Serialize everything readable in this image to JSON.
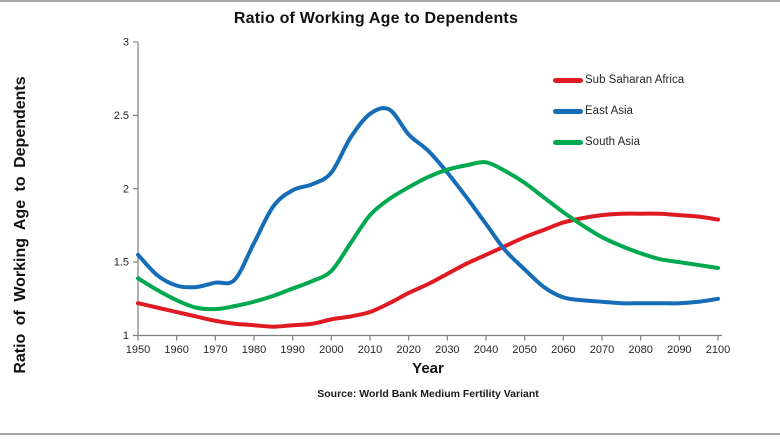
{
  "frame": {
    "rule_color": "#a8a8a8",
    "background": "#ffffff"
  },
  "chart_data": {
    "type": "line",
    "title": "Ratio of Working Age to Dependents",
    "xlabel": "Year",
    "ylabel": "Ratio of Working Age to Dependents",
    "source_note": "Source: World Bank Medium Fertility Variant",
    "xlim": [
      1950,
      2100
    ],
    "ylim": [
      1,
      3
    ],
    "grid": false,
    "legend_position": "upper right",
    "axis_color": "#7f7f7f",
    "tick_label_color": "#262626",
    "x_ticks": [
      1950,
      1960,
      1970,
      1980,
      1990,
      2000,
      2010,
      2020,
      2030,
      2040,
      2050,
      2060,
      2070,
      2080,
      2090,
      2100
    ],
    "y_ticks": [
      {
        "label": "1",
        "value": 1
      },
      {
        "label": "1.5",
        "value": 1.5
      },
      {
        "label": "2",
        "value": 2
      },
      {
        "label": "2.5",
        "value": 2.5
      },
      {
        "label": "3",
        "value": 3
      }
    ],
    "x": [
      1950,
      1955,
      1960,
      1965,
      1970,
      1975,
      1980,
      1985,
      1990,
      1995,
      2000,
      2005,
      2010,
      2015,
      2020,
      2025,
      2030,
      2035,
      2040,
      2045,
      2050,
      2055,
      2060,
      2065,
      2070,
      2075,
      2080,
      2085,
      2090,
      2095,
      2100
    ],
    "series": [
      {
        "name": "Sub Saharan Africa",
        "color": "#e01a22",
        "values": [
          1.22,
          1.19,
          1.16,
          1.13,
          1.1,
          1.08,
          1.07,
          1.06,
          1.07,
          1.08,
          1.11,
          1.13,
          1.16,
          1.22,
          1.29,
          1.35,
          1.42,
          1.49,
          1.55,
          1.61,
          1.67,
          1.72,
          1.77,
          1.8,
          1.82,
          1.83,
          1.83,
          1.83,
          1.82,
          1.81,
          1.79
        ]
      },
      {
        "name": "East Asia",
        "color": "#156db8",
        "values": [
          1.55,
          1.41,
          1.34,
          1.33,
          1.36,
          1.38,
          1.63,
          1.88,
          1.99,
          2.03,
          2.11,
          2.35,
          2.51,
          2.54,
          2.37,
          2.26,
          2.11,
          1.94,
          1.76,
          1.58,
          1.45,
          1.33,
          1.26,
          1.24,
          1.23,
          1.22,
          1.22,
          1.22,
          1.22,
          1.23,
          1.25
        ]
      },
      {
        "name": "South Asia",
        "color": "#00a94f",
        "values": [
          1.39,
          1.31,
          1.24,
          1.19,
          1.18,
          1.2,
          1.23,
          1.27,
          1.32,
          1.37,
          1.44,
          1.63,
          1.82,
          1.93,
          2.01,
          2.08,
          2.13,
          2.16,
          2.18,
          2.12,
          2.04,
          1.94,
          1.84,
          1.75,
          1.67,
          1.61,
          1.56,
          1.52,
          1.5,
          1.48,
          1.46
        ]
      }
    ]
  }
}
